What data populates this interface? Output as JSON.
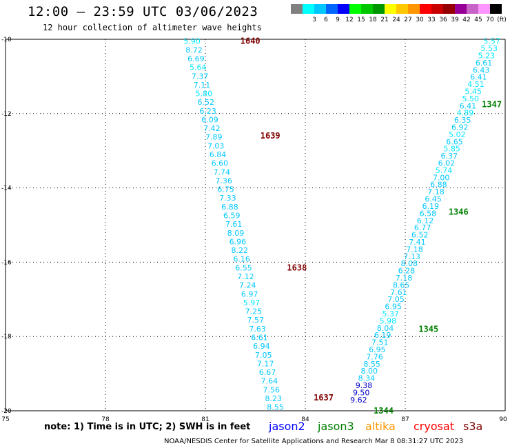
{
  "header": {
    "title": "12:00 – 23:59 UTC 03/06/2023",
    "subtitle": "12 hour collection of altimeter wave heights"
  },
  "colorbar": {
    "unit": "(ft)",
    "swatches": [
      {
        "color": "#808080",
        "label": ""
      },
      {
        "color": "#00ffff",
        "label": "3"
      },
      {
        "color": "#00c8ff",
        "label": "6"
      },
      {
        "color": "#0064ff",
        "label": "9"
      },
      {
        "color": "#0000ff",
        "label": "12"
      },
      {
        "color": "#00ff00",
        "label": "15"
      },
      {
        "color": "#00c800",
        "label": "18"
      },
      {
        "color": "#009600",
        "label": "21"
      },
      {
        "color": "#ffff00",
        "label": "24"
      },
      {
        "color": "#ffc800",
        "label": "27"
      },
      {
        "color": "#ff9600",
        "label": "30"
      },
      {
        "color": "#ff0000",
        "label": "33"
      },
      {
        "color": "#c80000",
        "label": "36"
      },
      {
        "color": "#960000",
        "label": "39"
      },
      {
        "color": "#960096",
        "label": "42"
      },
      {
        "color": "#c864c8",
        "label": "45"
      },
      {
        "color": "#ff96ff",
        "label": "70"
      },
      {
        "color": "#000000",
        "label": ""
      }
    ]
  },
  "chart_data": {
    "type": "scatter",
    "xlim": [
      75,
      90
    ],
    "ylim": [
      -20,
      -10
    ],
    "x_ticks": [
      75,
      78,
      81,
      84,
      87,
      90
    ],
    "y_ticks": [
      -10,
      -12,
      -14,
      -16,
      -18,
      -20
    ],
    "x_tick_labels": [
      "75",
      "78",
      "81",
      "84",
      "87",
      "90"
    ],
    "y_tick_labels": [
      "-10",
      "-12",
      "-14",
      "-16",
      "-18",
      "-20"
    ],
    "grid": true,
    "tracks": [
      {
        "color": "#00c8ff",
        "start": [
          80.6,
          -10.05
        ],
        "end": [
          83.1,
          -19.9
        ],
        "values": [
          "5.90",
          "8.72",
          "6.69",
          "5.64",
          "7.37",
          "7.11",
          "5.80",
          "6.52",
          "6.23",
          "6.09",
          "7.42",
          "7.89",
          "7.03",
          "6.84",
          "6.60",
          "7.74",
          "7.36",
          "6.75",
          "7.33",
          "6.88",
          "6.59",
          "7.61",
          "8.09",
          "6.96",
          "8.22",
          "6.16",
          "6.55",
          "7.12",
          "7.24",
          "6.97",
          "5.97",
          "7.25",
          "7.57",
          "7.63",
          "6.61",
          "6.94",
          "7.05",
          "7.17",
          "6.67",
          "7.64",
          "7.56",
          "8.23",
          "8.55"
        ]
      },
      {
        "color": "#00c8ff",
        "start": [
          89.6,
          -10.05
        ],
        "end": [
          85.6,
          -19.7
        ],
        "values": [
          "5.57",
          "5.53",
          "5.23",
          "6.61",
          "6.43",
          "6.41",
          "4.51",
          "5.45",
          "5.50",
          "6.41",
          "4.89",
          "6.35",
          "6.92",
          "5.02",
          "6.65",
          "5.85",
          "6.37",
          "6.02",
          "5.74",
          "7.00",
          "6.88",
          "7.18",
          "6.45",
          "6.19",
          "6.58",
          "6.12",
          "6.77",
          "6.52",
          "7.41",
          "7.18",
          "7.13",
          "8.08",
          "6.28",
          "7.18",
          "8.65",
          "7.61",
          "7.05",
          "6.95",
          "5.37",
          "5.98",
          "8.04",
          "6.19",
          "7.51",
          "6.95",
          "7.76",
          "8.55",
          "8.00",
          "8.34",
          "9.38",
          "9.50",
          "9.62"
        ]
      }
    ],
    "annotations": [
      {
        "text": "1640",
        "x": 82.05,
        "y": -10.05,
        "color": "#800000"
      },
      {
        "text": "1639",
        "x": 82.65,
        "y": -12.6,
        "color": "#800000"
      },
      {
        "text": "1638",
        "x": 83.45,
        "y": -16.15,
        "color": "#800000"
      },
      {
        "text": "1637",
        "x": 84.25,
        "y": -19.65,
        "color": "#800000"
      },
      {
        "text": "1347",
        "x": 89.3,
        "y": -11.75,
        "color": "#008000"
      },
      {
        "text": "1346",
        "x": 88.3,
        "y": -14.65,
        "color": "#008000"
      },
      {
        "text": "1345",
        "x": 87.4,
        "y": -17.8,
        "color": "#008000"
      },
      {
        "text": "1344",
        "x": 86.05,
        "y": -20.0,
        "color": "#008000"
      }
    ]
  },
  "note": "note: 1) Time is in UTC; 2) SWH is in feet",
  "satellites": [
    {
      "name": "jason2",
      "color": "#0000ff"
    },
    {
      "name": "jason3",
      "color": "#008000"
    },
    {
      "name": "altika",
      "color": "#ff9600"
    },
    {
      "name": "cryosat",
      "color": "#ff0000"
    },
    {
      "name": "s3a",
      "color": "#800000"
    }
  ],
  "footer": "NOAA/NESDIS Center for Satellite Applications and Research   Mar  8 08:31:27 UTC 2023"
}
